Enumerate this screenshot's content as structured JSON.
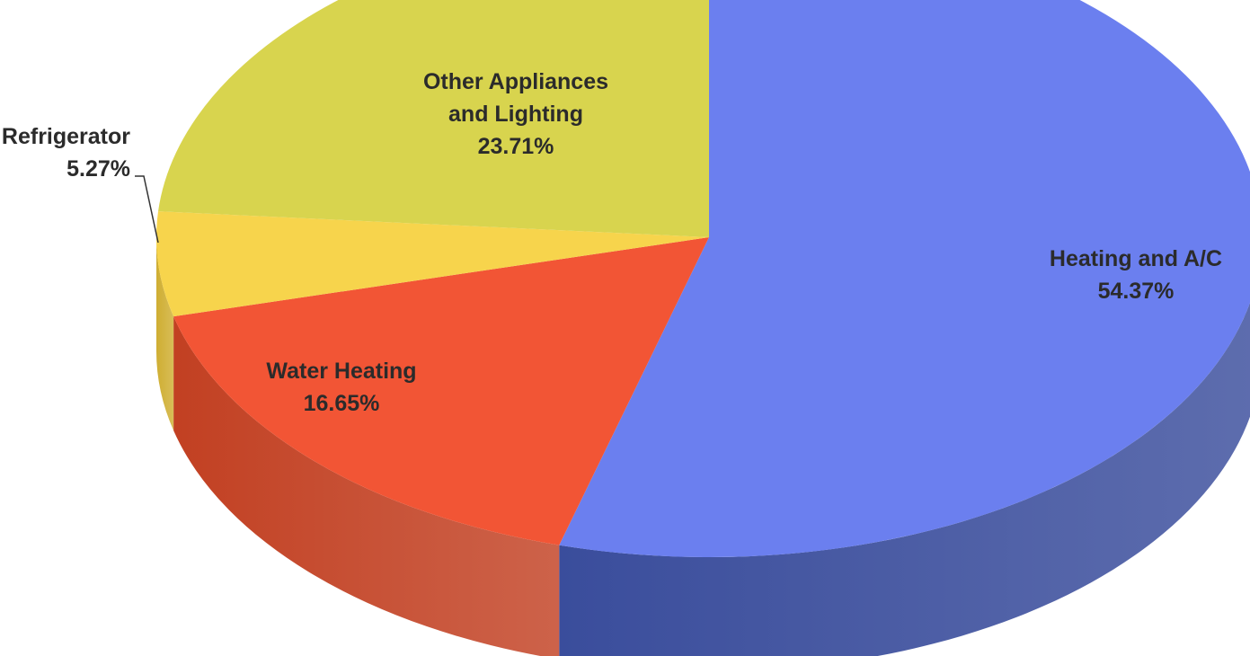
{
  "chart_data": {
    "type": "pie",
    "style": "3d",
    "title": "",
    "slices": [
      {
        "label_lines": [
          "Heating and A/C"
        ],
        "value": 54.37,
        "value_text": "54.37%",
        "color": "#6b7fef",
        "side_color": "#3a4d9c"
      },
      {
        "label_lines": [
          "Water Heating"
        ],
        "value": 16.65,
        "value_text": "16.65%",
        "color": "#f25535",
        "side_color": "#c24022"
      },
      {
        "label_lines": [
          "Refrigerator"
        ],
        "value": 5.27,
        "value_text": "5.27%",
        "color": "#f7d44c",
        "side_color": "#cfae32"
      },
      {
        "label_lines": [
          "Other Appliances",
          "and Lighting"
        ],
        "value": 23.71,
        "value_text": "23.71%",
        "color": "#d8d44e",
        "side_color": "#aba637"
      }
    ]
  }
}
